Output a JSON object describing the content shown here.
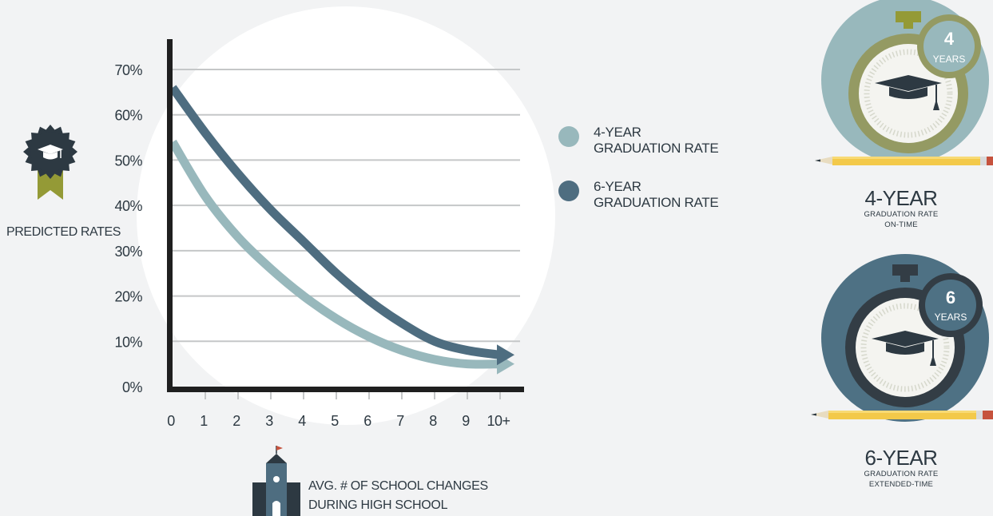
{
  "chart_data": {
    "type": "line",
    "x": [
      "0",
      "1",
      "2",
      "3",
      "4",
      "5",
      "6",
      "7",
      "8",
      "9",
      "10+"
    ],
    "series": [
      {
        "name": "4-YEAR GRADUATION RATE",
        "values": [
          54,
          42,
          33,
          26,
          20,
          15,
          11,
          8,
          6,
          5,
          5
        ],
        "color": "#98b8bc"
      },
      {
        "name": "6-YEAR GRADUATION RATE",
        "values": [
          66,
          56,
          47,
          39,
          32,
          25,
          19,
          14,
          10,
          8,
          7
        ],
        "color": "#4e6d80"
      }
    ],
    "y_ticks": [
      "0%",
      "10%",
      "20%",
      "30%",
      "40%",
      "50%",
      "60%",
      "70%"
    ],
    "ylim": [
      0,
      70
    ],
    "ylabel": "PREDICTED RATES",
    "xlabel": "AVG. # OF SCHOOL CHANGES DURING HIGH SCHOOL",
    "grid": true,
    "legend_position": "right"
  },
  "legend": [
    {
      "line1": "4-YEAR",
      "line2": "GRADUATION RATE",
      "color": "#98b8bc"
    },
    {
      "line1": "6-YEAR",
      "line2": "GRADUATION RATE",
      "color": "#4e6d80"
    }
  ],
  "badge": {
    "label": "PREDICTED RATES",
    "icon": "graduation-cap-badge-icon"
  },
  "xlabel_lines": [
    "AVG. # OF SCHOOL CHANGES",
    "DURING HIGH SCHOOL"
  ],
  "timers": [
    {
      "number": "4",
      "unit": "YEARS",
      "title": "4-YEAR",
      "sub1": "GRADUATION RATE",
      "sub2": "ON-TIME",
      "bg": "#98b8bc",
      "ring": "#949a63",
      "badge": "#98b8bc",
      "icon": "stopwatch-icon"
    },
    {
      "number": "6",
      "unit": "YEARS",
      "title": "6-YEAR",
      "sub1": "GRADUATION RATE",
      "sub2": "EXTENDED-TIME",
      "bg": "#4e7184",
      "ring": "#333d45",
      "badge": "#4e7184",
      "icon": "stopwatch-icon"
    }
  ],
  "colors": {
    "axis": "#1f1f1f",
    "grid": "#c5c7c8",
    "text": "#2d3942",
    "pencil": "#f3c94a"
  }
}
